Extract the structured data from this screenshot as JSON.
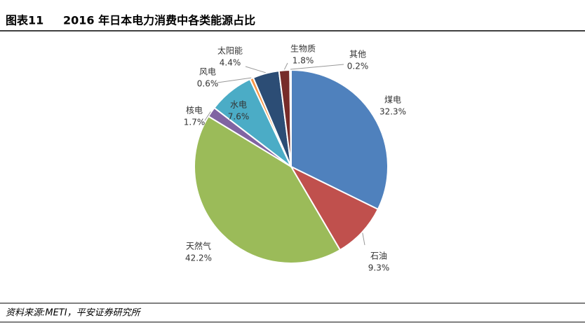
{
  "chart_data": {
    "type": "pie",
    "figure_label": "图表11",
    "title": "2016 年日本电力消费中各类能源占比",
    "categories": [
      "煤电",
      "石油",
      "天然气",
      "核电",
      "水电",
      "风电",
      "太阳能",
      "生物质",
      "其他"
    ],
    "values": [
      32.3,
      9.3,
      42.2,
      1.7,
      7.6,
      0.6,
      4.4,
      1.8,
      0.2
    ],
    "value_labels": [
      "32.3%",
      "9.3%",
      "42.2%",
      "1.7%",
      "7.6%",
      "0.6%",
      "4.4%",
      "1.8%",
      "0.2%"
    ],
    "colors": [
      "#4f81bd",
      "#c0504d",
      "#9bbb59",
      "#8064a2",
      "#4bacc6",
      "#f79646",
      "#2c4d75",
      "#772c2a",
      "#5f7530"
    ],
    "source": "资料来源:METI，平安证券研究所"
  }
}
